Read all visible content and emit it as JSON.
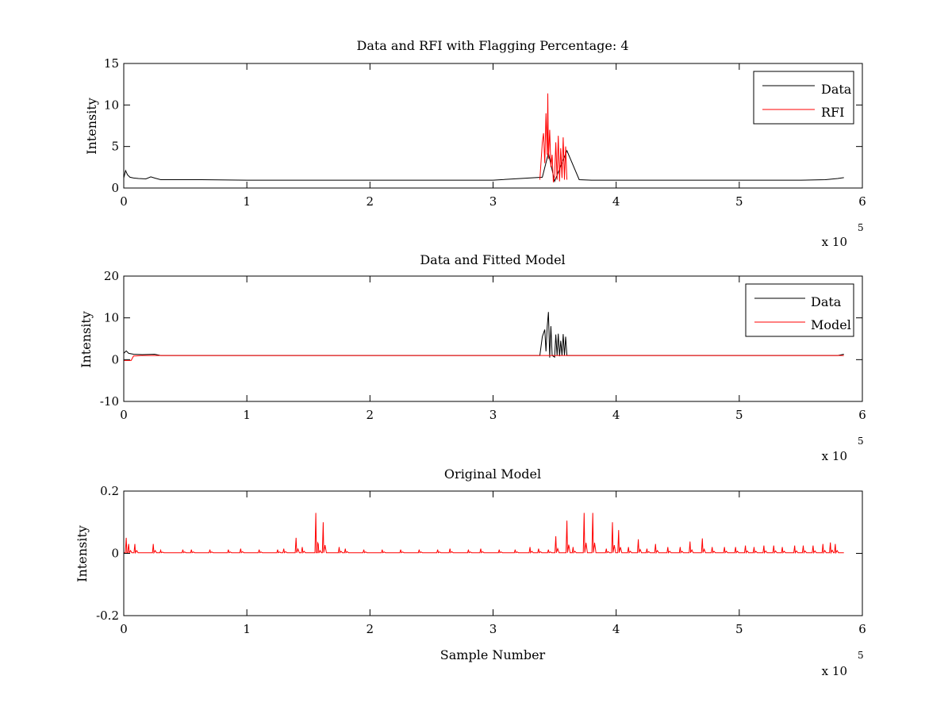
{
  "figure": {
    "background": "#ffffff"
  },
  "chart_data": [
    {
      "type": "line",
      "title": "Data and RFI with Flagging Percentage: 4",
      "xlabel": "",
      "ylabel": "Intensity",
      "xlim": [
        0,
        600000
      ],
      "ylim": [
        0,
        15
      ],
      "xticks": [
        0,
        1,
        2,
        3,
        4,
        5,
        6
      ],
      "yticks": [
        0,
        5,
        10,
        15
      ],
      "x_exponent": "x 10",
      "x_exponent_power": "5",
      "grid": false,
      "legend_position": "top-right",
      "legend": [
        "Data",
        "RFI"
      ],
      "series": [
        {
          "name": "Data",
          "color": "#000000",
          "x": [
            0,
            1500,
            3000,
            5000,
            8000,
            12000,
            18000,
            22000,
            25000,
            30000,
            60000,
            100000,
            150000,
            200000,
            250000,
            300000,
            340000,
            345000,
            350000,
            360000,
            370000,
            380000,
            420000,
            500000,
            550000,
            570000,
            580000,
            585000
          ],
          "y": [
            1.2,
            2.1,
            1.6,
            1.3,
            1.2,
            1.15,
            1.1,
            1.35,
            1.2,
            1.0,
            1.0,
            0.95,
            0.95,
            0.95,
            0.95,
            0.95,
            1.3,
            4.2,
            0.8,
            4.5,
            1.0,
            0.95,
            0.95,
            0.95,
            0.95,
            1.0,
            1.15,
            1.25
          ]
        },
        {
          "name": "RFI",
          "color": "#ff0000",
          "x": [
            338000,
            340000,
            341000,
            342000,
            343000,
            344000,
            344500,
            345000,
            346000,
            347000,
            348000,
            349000,
            350000,
            351000,
            352000,
            353000,
            354000,
            355000,
            356000,
            357000,
            358000,
            359000,
            360000
          ],
          "y": [
            1.0,
            5.5,
            6.6,
            3.0,
            9.0,
            4.0,
            11.4,
            3.5,
            7.0,
            2.5,
            4.0,
            0.7,
            1.5,
            5.5,
            1.0,
            6.3,
            0.8,
            4.8,
            1.2,
            6.1,
            1.0,
            5.0,
            1.0
          ]
        }
      ]
    },
    {
      "type": "line",
      "title": "Data and Fitted Model",
      "xlabel": "",
      "ylabel": "Intensity",
      "xlim": [
        0,
        600000
      ],
      "ylim": [
        -10,
        20
      ],
      "xticks": [
        0,
        1,
        2,
        3,
        4,
        5,
        6
      ],
      "yticks": [
        -10,
        0,
        10,
        20
      ],
      "x_exponent": "x 10",
      "x_exponent_power": "5",
      "grid": false,
      "legend_position": "top-right",
      "legend": [
        "Data",
        "Model"
      ],
      "series": [
        {
          "name": "Data",
          "color": "#000000",
          "x": [
            0,
            2000,
            4000,
            8000,
            15000,
            25000,
            30000,
            335000,
            338000,
            340000,
            342000,
            343000,
            344000,
            345000,
            346000,
            347000,
            348000,
            350000,
            351000,
            352000,
            353000,
            354000,
            355000,
            356000,
            357000,
            358000,
            359000,
            360000,
            362000,
            580000,
            585000
          ],
          "y": [
            1.5,
            2.1,
            1.5,
            1.3,
            1.2,
            1.3,
            1.0,
            1.0,
            1.0,
            5.5,
            7.2,
            2.0,
            8.0,
            11.4,
            0.5,
            8.0,
            1.0,
            0.6,
            6.0,
            1.0,
            6.2,
            0.8,
            4.5,
            1.0,
            6.1,
            1.0,
            5.5,
            1.0,
            1.0,
            1.0,
            1.3
          ]
        },
        {
          "name": "Model",
          "color": "#ff0000",
          "x": [
            0,
            6000,
            8000,
            10000,
            14000,
            16000,
            585000
          ],
          "y": [
            -0.2,
            -0.2,
            0.9,
            0.9,
            1.0,
            1.0,
            1.0
          ]
        }
      ]
    },
    {
      "type": "line",
      "title": "Original Model",
      "xlabel": "Sample Number",
      "ylabel": "Intensity",
      "xlim": [
        0,
        600000
      ],
      "ylim": [
        -0.2,
        0.2
      ],
      "xticks": [
        0,
        1,
        2,
        3,
        4,
        5,
        6
      ],
      "yticks": [
        -0.2,
        0,
        0.2
      ],
      "ytick_labels": [
        "-0.2",
        "0",
        "0.2"
      ],
      "x_exponent": "x 10",
      "x_exponent_power": "5",
      "grid": false,
      "series": [
        {
          "name": "",
          "color": "#ff0000",
          "baseline": 0.002,
          "peaks": [
            [
              2000,
              0.05
            ],
            [
              4000,
              0.03
            ],
            [
              9000,
              0.03
            ],
            [
              24000,
              0.03
            ],
            [
              30000,
              0.01
            ],
            [
              48000,
              0.012
            ],
            [
              55000,
              0.012
            ],
            [
              70000,
              0.012
            ],
            [
              85000,
              0.012
            ],
            [
              95000,
              0.015
            ],
            [
              110000,
              0.012
            ],
            [
              125000,
              0.012
            ],
            [
              130000,
              0.015
            ],
            [
              140000,
              0.05
            ],
            [
              145000,
              0.02
            ],
            [
              156000,
              0.13
            ],
            [
              158000,
              0.03
            ],
            [
              162000,
              0.1
            ],
            [
              175000,
              0.02
            ],
            [
              180000,
              0.015
            ],
            [
              195000,
              0.012
            ],
            [
              210000,
              0.012
            ],
            [
              225000,
              0.012
            ],
            [
              240000,
              0.012
            ],
            [
              255000,
              0.012
            ],
            [
              265000,
              0.015
            ],
            [
              280000,
              0.012
            ],
            [
              290000,
              0.015
            ],
            [
              305000,
              0.012
            ],
            [
              318000,
              0.012
            ],
            [
              330000,
              0.02
            ],
            [
              337000,
              0.015
            ],
            [
              345000,
              0.012
            ],
            [
              351000,
              0.055
            ],
            [
              360000,
              0.105
            ],
            [
              365000,
              0.02
            ],
            [
              374000,
              0.13
            ],
            [
              381000,
              0.13
            ],
            [
              392000,
              0.015
            ],
            [
              397000,
              0.1
            ],
            [
              402000,
              0.075
            ],
            [
              410000,
              0.02
            ],
            [
              418000,
              0.045
            ],
            [
              425000,
              0.015
            ],
            [
              432000,
              0.03
            ],
            [
              442000,
              0.02
            ],
            [
              452000,
              0.02
            ],
            [
              460000,
              0.038
            ],
            [
              470000,
              0.048
            ],
            [
              478000,
              0.02
            ],
            [
              488000,
              0.02
            ],
            [
              497000,
              0.02
            ],
            [
              505000,
              0.025
            ],
            [
              512000,
              0.02
            ],
            [
              520000,
              0.025
            ],
            [
              528000,
              0.025
            ],
            [
              535000,
              0.02
            ],
            [
              545000,
              0.025
            ],
            [
              552000,
              0.025
            ],
            [
              560000,
              0.025
            ],
            [
              568000,
              0.03
            ],
            [
              574000,
              0.035
            ],
            [
              578000,
              0.03
            ]
          ],
          "x_end": 585000
        }
      ]
    }
  ]
}
